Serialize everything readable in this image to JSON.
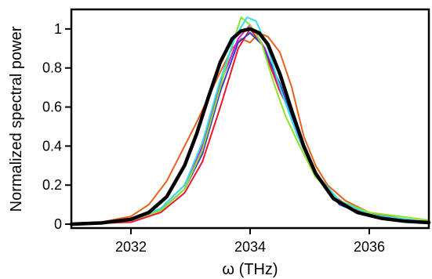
{
  "chart_data": {
    "type": "line",
    "title": "",
    "xlabel": "ω (THz)",
    "ylabel": "Normalized spectral power",
    "xlim": [
      2031.0,
      2037.0
    ],
    "ylim": [
      -0.02,
      1.1
    ],
    "xticks": [
      2032,
      2034,
      2036
    ],
    "yticks": [
      0,
      0.2,
      0.4,
      0.6,
      0.8,
      1
    ],
    "xtick_labels": [
      "2032",
      "2034",
      "2036"
    ],
    "ytick_labels": [
      "0",
      "0.2",
      "0.4",
      "0.6",
      "0.8",
      "1"
    ],
    "grid": false,
    "legend": "none",
    "series": [
      {
        "color": "#e8611c",
        "x": [
          2031.0,
          2031.5,
          2032.0,
          2032.3,
          2032.6,
          2032.9,
          2033.1,
          2033.3,
          2033.5,
          2033.7,
          2033.85,
          2034.0,
          2034.15,
          2034.3,
          2034.5,
          2034.7,
          2034.9,
          2035.1,
          2035.3,
          2035.6,
          2036.0,
          2036.5,
          2037.0
        ],
        "y": [
          0.0,
          0.01,
          0.04,
          0.1,
          0.22,
          0.4,
          0.52,
          0.65,
          0.78,
          0.9,
          0.95,
          0.93,
          0.98,
          0.96,
          0.88,
          0.7,
          0.45,
          0.3,
          0.2,
          0.12,
          0.06,
          0.03,
          0.01
        ]
      },
      {
        "color": "#e8192c",
        "x": [
          2031.0,
          2032.0,
          2032.5,
          2032.9,
          2033.2,
          2033.5,
          2033.8,
          2034.0,
          2034.2,
          2034.5,
          2034.8,
          2035.0,
          2035.3,
          2035.7,
          2036.2,
          2037.0
        ],
        "y": [
          0.0,
          0.01,
          0.06,
          0.16,
          0.32,
          0.6,
          0.9,
          1.0,
          0.92,
          0.68,
          0.5,
          0.32,
          0.17,
          0.08,
          0.03,
          0.01
        ]
      },
      {
        "color": "#d11bd6",
        "x": [
          2031.0,
          2032.0,
          2032.5,
          2032.9,
          2033.2,
          2033.5,
          2033.8,
          2034.0,
          2034.25,
          2034.5,
          2034.8,
          2035.1,
          2035.5,
          2036.0,
          2037.0
        ],
        "y": [
          0.0,
          0.02,
          0.08,
          0.2,
          0.4,
          0.72,
          0.95,
          1.02,
          0.9,
          0.7,
          0.45,
          0.25,
          0.1,
          0.04,
          0.01
        ]
      },
      {
        "color": "#3a3acd",
        "x": [
          2031.0,
          2032.0,
          2032.5,
          2032.9,
          2033.2,
          2033.5,
          2033.8,
          2034.0,
          2034.2,
          2034.5,
          2034.8,
          2035.1,
          2035.5,
          2036.0,
          2037.0
        ],
        "y": [
          0.0,
          0.02,
          0.07,
          0.18,
          0.36,
          0.68,
          0.93,
          0.98,
          0.92,
          0.72,
          0.46,
          0.25,
          0.1,
          0.04,
          0.01
        ]
      },
      {
        "color": "#8de22a",
        "x": [
          2031.0,
          2032.0,
          2032.5,
          2032.9,
          2033.2,
          2033.5,
          2033.7,
          2033.85,
          2034.0,
          2034.2,
          2034.4,
          2034.6,
          2034.8,
          2035.1,
          2035.5,
          2036.0,
          2037.0
        ],
        "y": [
          0.0,
          0.02,
          0.07,
          0.18,
          0.38,
          0.7,
          0.92,
          1.06,
          1.02,
          0.92,
          0.72,
          0.55,
          0.42,
          0.24,
          0.12,
          0.06,
          0.02
        ]
      },
      {
        "color": "#2fe0e6",
        "x": [
          2031.0,
          2032.0,
          2032.5,
          2032.9,
          2033.2,
          2033.5,
          2033.75,
          2033.95,
          2034.1,
          2034.3,
          2034.5,
          2034.8,
          2035.1,
          2035.5,
          2036.0,
          2037.0
        ],
        "y": [
          0.0,
          0.02,
          0.08,
          0.2,
          0.42,
          0.74,
          0.96,
          1.06,
          1.04,
          0.9,
          0.7,
          0.45,
          0.26,
          0.12,
          0.05,
          0.01
        ]
      },
      {
        "color": "#000000",
        "x": [
          2031.0,
          2031.5,
          2032.0,
          2032.3,
          2032.6,
          2032.9,
          2033.1,
          2033.3,
          2033.5,
          2033.7,
          2033.85,
          2034.0,
          2034.15,
          2034.3,
          2034.5,
          2034.7,
          2034.9,
          2035.1,
          2035.4,
          2035.8,
          2036.2,
          2036.6,
          2037.0
        ],
        "y": [
          0.0,
          0.006,
          0.025,
          0.06,
          0.14,
          0.3,
          0.46,
          0.65,
          0.83,
          0.95,
          0.99,
          1.0,
          0.98,
          0.92,
          0.77,
          0.58,
          0.4,
          0.26,
          0.13,
          0.06,
          0.03,
          0.015,
          0.008
        ]
      }
    ]
  }
}
